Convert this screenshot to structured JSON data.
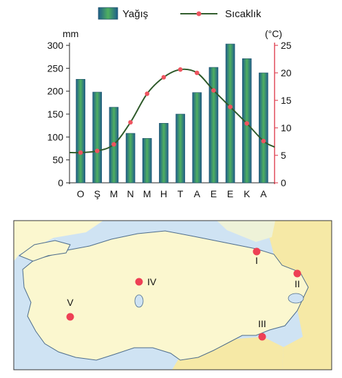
{
  "chart_data": {
    "type": "bar+line",
    "categories": [
      "O",
      "Ş",
      "M",
      "N",
      "M",
      "H",
      "T",
      "A",
      "E",
      "E",
      "K",
      "A"
    ],
    "series": [
      {
        "name": "Yağış",
        "kind": "bar",
        "axis": "left",
        "values": [
          226,
          198,
          165,
          108,
          97,
          130,
          150,
          197,
          252,
          303,
          271,
          240
        ]
      },
      {
        "name": "Sıcaklık",
        "kind": "line",
        "axis": "right",
        "values": [
          5.5,
          5.8,
          7,
          11,
          16.2,
          19.2,
          20.6,
          20,
          16.8,
          13.8,
          10.8,
          7.6
        ]
      }
    ],
    "y_left": {
      "unit": "mm",
      "range": [
        0,
        300
      ],
      "ticks": [
        0,
        50,
        100,
        150,
        200,
        250,
        300
      ]
    },
    "y_right": {
      "unit": "(°C)",
      "range": [
        0,
        25
      ],
      "ticks": [
        0,
        5,
        10,
        15,
        20,
        25
      ]
    },
    "legend": {
      "placement": "top",
      "bar_label": "Yağış",
      "line_label": "Sıcaklık"
    },
    "grid": false,
    "colors": {
      "bar": "#2e9a5a",
      "bar_dark": "#1f5f8a",
      "line": "#2e5a2a",
      "point": "#ee5560",
      "right_axis": "#e04a5a"
    }
  },
  "map": {
    "points": [
      {
        "label": "I",
        "color": "#ee4055"
      },
      {
        "label": "II",
        "color": "#ee4055"
      },
      {
        "label": "III",
        "color": "#ee4055"
      },
      {
        "label": "IV",
        "color": "#ee4055"
      },
      {
        "label": "V",
        "color": "#ee4055"
      }
    ],
    "colors": {
      "sea": "#cfe3f3",
      "land": "#fbf7cf",
      "neighbor": "#f6e9a6",
      "border": "#4a6a8a"
    }
  }
}
